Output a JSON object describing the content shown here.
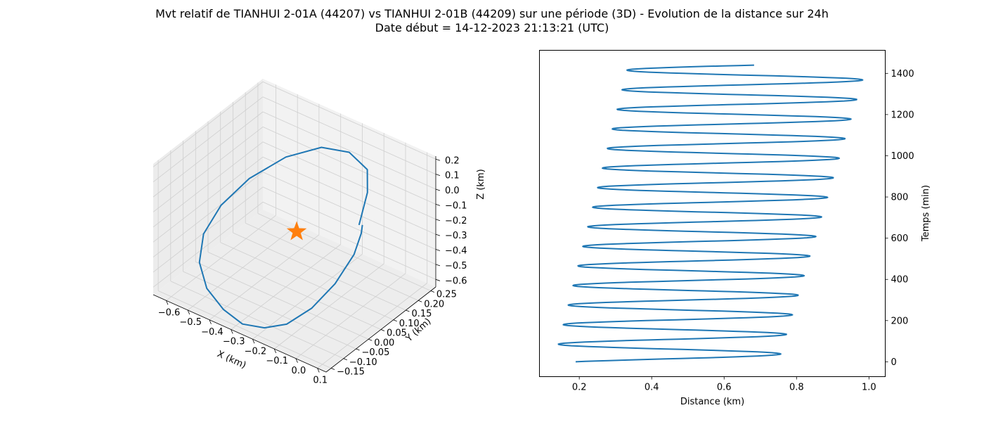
{
  "figure": {
    "title_line1": "Mvt relatif de TIANHUI 2-01A (44207) vs TIANHUI 2-01B (44209) sur une période (3D) - Evolution de la distance sur 24h",
    "title_line2": "Date début = 14-12-2023 21:13:21 (UTC)"
  },
  "colors": {
    "series": "#1f77b4",
    "marker": "#ff7f0e",
    "pane": "#f2f2f2",
    "grid": "#cfcfcf"
  },
  "chart_data": [
    {
      "type": "line3d",
      "xlabel": "X (km)",
      "ylabel": "Y (km)",
      "zlabel": "Z (km)",
      "x_ticks": [
        "−0.6",
        "−0.5",
        "−0.4",
        "−0.3",
        "−0.2",
        "−0.1",
        "0.0",
        "0.1"
      ],
      "y_ticks": [
        "−0.15",
        "−0.10",
        "−0.05",
        "0.00",
        "0.05",
        "0.10",
        "0.15",
        "0.20",
        "0.25"
      ],
      "z_ticks": [
        "−0.6",
        "−0.5",
        "−0.4",
        "−0.3",
        "−0.2",
        "−0.1",
        "0.0",
        "0.1",
        "0.2"
      ],
      "xlim": [
        -0.66,
        0.14
      ],
      "ylim": [
        -0.17,
        0.27
      ],
      "zlim": [
        -0.65,
        0.22
      ],
      "grid": true,
      "marker": {
        "shape": "star",
        "x": -0.25,
        "y": 0.05,
        "z": -0.25
      },
      "trajectory": [
        {
          "x": 0.05,
          "y": 0.04,
          "z": 0.0
        },
        {
          "x": 0.05,
          "y": 0.05,
          "z": 0.05
        },
        {
          "x": 0.02,
          "y": 0.1,
          "z": 0.12
        },
        {
          "x": -0.05,
          "y": 0.16,
          "z": 0.15
        },
        {
          "x": -0.18,
          "y": 0.2,
          "z": 0.13
        },
        {
          "x": -0.32,
          "y": 0.21,
          "z": 0.06
        },
        {
          "x": -0.45,
          "y": 0.18,
          "z": -0.05
        },
        {
          "x": -0.55,
          "y": 0.12,
          "z": -0.18
        },
        {
          "x": -0.6,
          "y": 0.05,
          "z": -0.3
        },
        {
          "x": -0.6,
          "y": -0.02,
          "z": -0.4
        },
        {
          "x": -0.55,
          "y": -0.08,
          "z": -0.48
        },
        {
          "x": -0.47,
          "y": -0.12,
          "z": -0.55
        },
        {
          "x": -0.37,
          "y": -0.14,
          "z": -0.6
        },
        {
          "x": -0.27,
          "y": -0.15,
          "z": -0.62
        },
        {
          "x": -0.18,
          "y": -0.14,
          "z": -0.6
        },
        {
          "x": -0.1,
          "y": -0.12,
          "z": -0.55
        },
        {
          "x": -0.03,
          "y": -0.08,
          "z": -0.45
        },
        {
          "x": 0.02,
          "y": -0.03,
          "z": -0.32
        },
        {
          "x": 0.05,
          "y": 0.02,
          "z": -0.17
        },
        {
          "x": 0.06,
          "y": 0.04,
          "z": -0.05
        },
        {
          "x": 0.06,
          "y": 0.045,
          "z": 0.0
        }
      ]
    },
    {
      "type": "line",
      "xlabel": "Distance (km)",
      "ylabel": "Temps (min)",
      "xlim": [
        0.09,
        1.045
      ],
      "ylim": [
        -72,
        1512
      ],
      "x_ticks": [
        0.2,
        0.4,
        0.6,
        0.8,
        1.0
      ],
      "x_tick_labels": [
        "0.2",
        "0.4",
        "0.6",
        "0.8",
        "1.0"
      ],
      "y_ticks": [
        0,
        200,
        400,
        600,
        800,
        1000,
        1200,
        1400
      ],
      "y_tick_labels": [
        "0",
        "200",
        "400",
        "600",
        "800",
        "1000",
        "1200",
        "1400"
      ],
      "y_axis_position": "right",
      "series": [
        {
          "oscillation": {
            "t_start": 0,
            "t_end": 1440,
            "period_min": 95,
            "center_start": 0.44,
            "center_end": 0.665,
            "amplitude_start": 0.31,
            "amplitude_end": 0.33,
            "start_distance": 0.19
          }
        }
      ]
    }
  ]
}
